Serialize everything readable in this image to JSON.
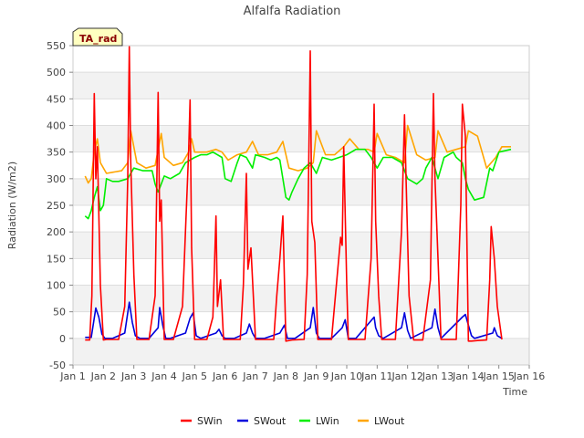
{
  "chart_data": {
    "type": "line",
    "title": "Alfalfa Radiation",
    "xlabel": "Time",
    "ylabel": "Radiation (W/m2)",
    "badge": "TA_rad",
    "xlim": [
      1,
      16
    ],
    "ylim": [
      -50,
      550
    ],
    "x_ticks": [
      1,
      2,
      3,
      4,
      5,
      6,
      7,
      8,
      9,
      10,
      11,
      12,
      13,
      14,
      15,
      16
    ],
    "x_tick_labels": [
      "Jan 1",
      "Jan 2",
      "Jan 3",
      "Jan 4",
      "Jan 5",
      "Jan 6",
      "Jan 7",
      "Jan 8",
      "Jan 9",
      "Jan 10",
      "Jan 11",
      "Jan 12",
      "Jan 13",
      "Jan 14",
      "Jan 15",
      "Jan 16"
    ],
    "y_ticks": [
      -50,
      0,
      50,
      100,
      150,
      200,
      250,
      300,
      350,
      400,
      450,
      500,
      550
    ],
    "y_tick_labels": [
      "-50",
      "0",
      "50",
      "100",
      "150",
      "200",
      "250",
      "300",
      "350",
      "400",
      "450",
      "500",
      "550"
    ],
    "series": [
      {
        "name": "SWin",
        "color": "#ff0000",
        "x": [
          1.4,
          1.55,
          1.62,
          1.7,
          1.75,
          1.8,
          1.9,
          2.0,
          2.1,
          2.3,
          2.5,
          2.7,
          2.8,
          2.85,
          2.9,
          3.0,
          3.1,
          3.3,
          3.5,
          3.7,
          3.8,
          3.85,
          3.9,
          4.0,
          4.1,
          4.3,
          4.6,
          4.8,
          4.85,
          4.9,
          5.0,
          5.1,
          5.4,
          5.6,
          5.7,
          5.75,
          5.85,
          5.95,
          6.0,
          6.3,
          6.5,
          6.6,
          6.7,
          6.75,
          6.85,
          7.0,
          7.3,
          7.6,
          7.7,
          7.8,
          7.9,
          8.0,
          8.2,
          8.6,
          8.7,
          8.8,
          8.85,
          8.95,
          9.05,
          9.1,
          9.5,
          9.8,
          9.85,
          9.9,
          10.0,
          10.05,
          10.2,
          10.6,
          10.8,
          10.9,
          10.95,
          11.05,
          11.15,
          11.3,
          11.6,
          11.8,
          11.9,
          11.95,
          12.05,
          12.2,
          12.3,
          12.5,
          12.75,
          12.85,
          12.9,
          13.0,
          13.1,
          13.3,
          13.6,
          13.75,
          13.8,
          13.9,
          14.0,
          14.1,
          14.3,
          14.6,
          14.7,
          14.75,
          14.85,
          14.95,
          15.1
        ],
        "y": [
          -3,
          -3,
          80,
          460,
          300,
          360,
          100,
          -3,
          -2,
          -2,
          -2,
          60,
          300,
          548,
          330,
          120,
          -2,
          -2,
          -2,
          80,
          462,
          220,
          260,
          -2,
          -2,
          -2,
          60,
          350,
          448,
          170,
          -2,
          -2,
          -2,
          40,
          230,
          60,
          110,
          -2,
          -2,
          -2,
          -2,
          100,
          310,
          130,
          170,
          -2,
          -2,
          -2,
          80,
          150,
          230,
          -5,
          -3,
          -2,
          120,
          540,
          220,
          180,
          -2,
          -2,
          -2,
          190,
          175,
          360,
          100,
          -2,
          -2,
          -2,
          150,
          440,
          220,
          80,
          -2,
          -2,
          -2,
          200,
          420,
          300,
          80,
          -3,
          -3,
          -3,
          110,
          460,
          300,
          150,
          -2,
          -2,
          -2,
          250,
          440,
          380,
          -5,
          -5,
          -4,
          -3,
          110,
          210,
          150,
          60,
          -2
        ]
      },
      {
        "name": "SWout",
        "color": "#0000dd",
        "x": [
          1.4,
          1.6,
          1.75,
          1.85,
          1.95,
          2.05,
          2.3,
          2.7,
          2.85,
          2.95,
          3.05,
          3.2,
          3.5,
          3.8,
          3.85,
          3.95,
          4.05,
          4.2,
          4.7,
          4.85,
          4.95,
          5.05,
          5.2,
          5.7,
          5.8,
          5.9,
          6.0,
          6.3,
          6.7,
          6.8,
          6.9,
          7.0,
          7.3,
          7.8,
          7.95,
          8.05,
          8.3,
          8.8,
          8.9,
          9.0,
          9.1,
          9.5,
          9.85,
          9.95,
          10.05,
          10.3,
          10.9,
          10.95,
          11.05,
          11.2,
          11.8,
          11.9,
          12.0,
          12.1,
          12.8,
          12.9,
          13.0,
          13.1,
          13.8,
          13.9,
          14.0,
          14.1,
          14.2,
          14.8,
          14.85,
          14.95,
          15.1
        ],
        "y": [
          2,
          2,
          57,
          40,
          8,
          0,
          0,
          10,
          68,
          30,
          5,
          0,
          0,
          20,
          58,
          25,
          0,
          0,
          10,
          38,
          48,
          5,
          0,
          10,
          17,
          5,
          0,
          0,
          10,
          27,
          10,
          0,
          0,
          10,
          25,
          0,
          0,
          20,
          58,
          10,
          0,
          0,
          20,
          35,
          0,
          0,
          40,
          20,
          5,
          0,
          20,
          48,
          15,
          0,
          20,
          55,
          20,
          0,
          40,
          45,
          25,
          5,
          0,
          10,
          20,
          5,
          0
        ]
      },
      {
        "name": "LWin",
        "color": "#00ee00",
        "x": [
          1.4,
          1.5,
          1.6,
          1.7,
          1.8,
          1.9,
          2.0,
          2.1,
          2.3,
          2.5,
          2.8,
          2.9,
          3.0,
          3.3,
          3.6,
          3.7,
          3.8,
          3.9,
          4.0,
          4.2,
          4.5,
          4.7,
          5.0,
          5.2,
          5.4,
          5.6,
          5.9,
          6.0,
          6.2,
          6.4,
          6.5,
          6.7,
          6.9,
          7.0,
          7.3,
          7.5,
          7.7,
          7.8,
          8.0,
          8.1,
          8.2,
          8.4,
          8.6,
          8.8,
          9.0,
          9.2,
          9.5,
          10.0,
          10.3,
          10.6,
          10.8,
          11.0,
          11.2,
          11.5,
          11.8,
          12.0,
          12.3,
          12.5,
          12.6,
          12.8,
          13.0,
          13.2,
          13.5,
          13.6,
          13.8,
          13.9,
          14.0,
          14.2,
          14.5,
          14.7,
          14.8,
          15.0,
          15.4
        ],
        "y": [
          230,
          225,
          240,
          265,
          285,
          240,
          250,
          300,
          295,
          295,
          300,
          310,
          320,
          315,
          315,
          290,
          275,
          290,
          305,
          300,
          310,
          330,
          340,
          345,
          345,
          350,
          340,
          300,
          295,
          330,
          345,
          340,
          320,
          345,
          340,
          335,
          340,
          335,
          265,
          260,
          275,
          300,
          320,
          330,
          310,
          340,
          335,
          345,
          355,
          355,
          340,
          320,
          340,
          340,
          330,
          300,
          290,
          300,
          320,
          340,
          300,
          340,
          350,
          340,
          330,
          300,
          280,
          260,
          265,
          320,
          315,
          350,
          355
        ]
      },
      {
        "name": "LWout",
        "color": "#ffa500",
        "x": [
          1.4,
          1.5,
          1.6,
          1.7,
          1.8,
          1.9,
          2.1,
          2.3,
          2.6,
          2.8,
          2.9,
          3.1,
          3.4,
          3.7,
          3.9,
          4.0,
          4.3,
          4.6,
          4.8,
          4.9,
          5.0,
          5.4,
          5.7,
          5.9,
          6.1,
          6.4,
          6.7,
          6.9,
          7.1,
          7.4,
          7.7,
          7.9,
          8.1,
          8.4,
          8.7,
          8.9,
          9.0,
          9.3,
          9.6,
          9.9,
          10.1,
          10.4,
          10.7,
          10.9,
          11.0,
          11.3,
          11.6,
          11.9,
          12.0,
          12.3,
          12.6,
          12.9,
          13.0,
          13.3,
          13.6,
          13.9,
          14.0,
          14.3,
          14.6,
          14.9,
          15.1,
          15.4
        ],
        "y": [
          305,
          292,
          300,
          350,
          375,
          330,
          310,
          312,
          315,
          330,
          390,
          330,
          320,
          325,
          385,
          340,
          325,
          330,
          350,
          375,
          350,
          350,
          355,
          350,
          335,
          345,
          350,
          370,
          345,
          345,
          350,
          370,
          320,
          315,
          320,
          330,
          390,
          345,
          345,
          360,
          375,
          355,
          355,
          350,
          385,
          345,
          340,
          330,
          400,
          345,
          335,
          340,
          390,
          350,
          355,
          360,
          390,
          380,
          320,
          340,
          360,
          360
        ]
      }
    ]
  }
}
